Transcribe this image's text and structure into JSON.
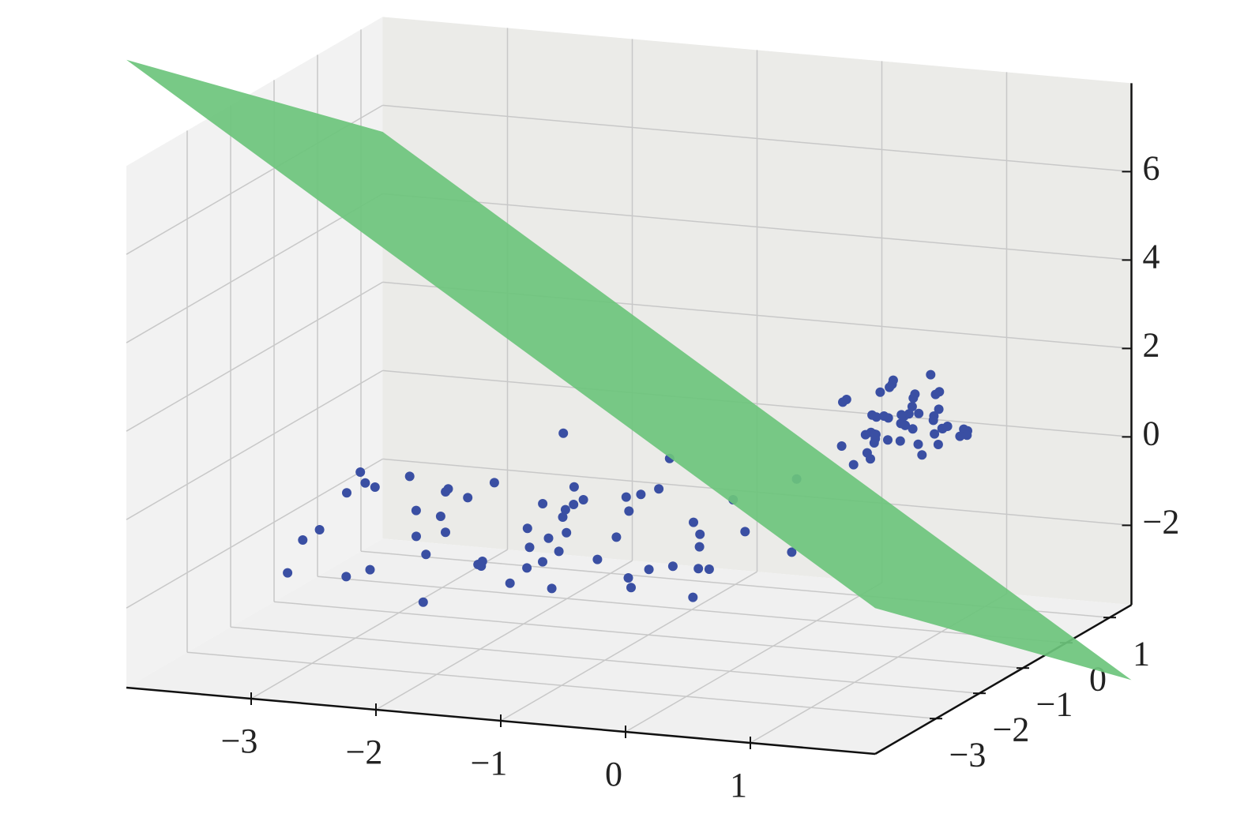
{
  "chart_data": {
    "type": "scatter3d",
    "xlim": [
      -4,
      2
    ],
    "ylim": [
      -4.4,
      1.5
    ],
    "zlim": [
      -3.8,
      8
    ],
    "xticks": [
      {
        "value": -3,
        "label": "−3"
      },
      {
        "value": -2,
        "label": "−2"
      },
      {
        "value": -1,
        "label": "−1"
      },
      0,
      1
    ],
    "yticks": [
      {
        "value": -3,
        "label": "−3"
      },
      {
        "value": -2,
        "label": "−2"
      },
      {
        "value": -1,
        "label": "−1"
      },
      0,
      1
    ],
    "zticks": [
      {
        "value": -2,
        "label": "−2"
      },
      0,
      2,
      4,
      6
    ],
    "grid": true,
    "color": "#3a4fa3",
    "x": [
      0.4,
      0.6,
      0.3,
      0.8,
      0.5,
      0.2,
      0.7,
      0.9,
      0.1,
      0.5,
      0.6,
      0.4,
      0.3,
      0.7,
      0.8,
      0.5,
      0.2,
      1.0,
      0.6,
      0.4,
      0.5,
      0.3,
      0.7,
      0.9,
      0.6,
      0.4,
      0.5,
      0.8,
      0.2,
      0.6,
      0.5,
      0.7,
      0.3,
      0.4,
      1.1,
      0.0,
      0.6,
      0.5,
      0.8,
      0.4,
      0.5,
      0.7,
      0.3,
      0.6,
      0.9,
      0.2,
      0.5,
      0.4,
      0.6,
      0.8,
      -3.2,
      -2.8,
      -2.1,
      -1.5,
      -0.9,
      -0.3,
      -2.5,
      -1.8,
      -1.1,
      -0.6,
      -3.0,
      -2.3,
      -1.6,
      -1.0,
      -0.4,
      -2.7,
      -2.0,
      -1.3,
      -0.7,
      -0.1,
      -3.4,
      -2.6,
      -1.9,
      -1.2,
      -0.5,
      -2.9,
      -2.2,
      -1.4,
      -0.8,
      -0.2,
      -3.1,
      -2.4,
      -1.7,
      -1.0,
      -0.3,
      -2.8,
      -2.0,
      -1.5,
      -0.9,
      -0.4,
      -3.3,
      -2.5,
      -1.8,
      -1.1,
      -0.6,
      -2.1,
      -1.6,
      -1.2,
      -0.7,
      -2.4,
      -1.3,
      -0.5,
      -2.9,
      -1.9,
      -0.8,
      -3.0,
      -2.2,
      -1.4,
      -0.2,
      -1.7
    ],
    "y": [
      0.5,
      0.2,
      0.9,
      0.4,
      -0.2,
      0.7,
      1.0,
      0.1,
      0.4,
      0.6,
      -0.4,
      1.2,
      0.3,
      0.8,
      -0.1,
      0.5,
      0.0,
      0.6,
      1.1,
      -0.3,
      0.9,
      0.6,
      0.2,
      0.8,
      0.4,
      0.1,
      1.3,
      0.5,
      0.8,
      -0.6,
      0.3,
      0.7,
      1.4,
      0.2,
      0.3,
      0.6,
      0.9,
      -0.1,
      1.0,
      0.4,
      0.6,
      0.0,
      0.5,
      0.7,
      0.3,
      1.1,
      0.2,
      0.8,
      0.5,
      0.6,
      -1.2,
      -0.5,
      0.2,
      -2.0,
      -0.8,
      0.4,
      -3.1,
      -1.5,
      -2.6,
      -0.2,
      -2.2,
      0.3,
      -1.0,
      -3.3,
      -1.7,
      -0.9,
      -2.8,
      0.1,
      -1.3,
      -2.4,
      -0.4,
      -1.9,
      -3.6,
      -0.6,
      -2.9,
      -2.5,
      -1.1,
      -0.3,
      -3.8,
      0.0,
      -1.6,
      -2.1,
      -0.7,
      -1.4,
      -3.0,
      -3.4,
      -0.1,
      -2.3,
      -1.8,
      -0.5,
      -2.7,
      -1.3,
      -0.2,
      -3.9,
      -1.0,
      -2.0,
      -3.2,
      -1.6,
      -2.6,
      -0.8,
      -2.2,
      -1.4,
      -3.5,
      -1.2,
      -0.4,
      -0.6,
      -2.9,
      -3.7,
      -1.9,
      -0.9
    ],
    "z": [
      0.6,
      0.3,
      1.2,
      0.8,
      0.1,
      0.5,
      0.2,
      0.9,
      1.0,
      0.4,
      0.6,
      0.3,
      -0.1,
      0.7,
      1.3,
      0.5,
      0.2,
      0.4,
      0.9,
      0.0,
      -0.2,
      1.1,
      0.6,
      0.3,
      0.8,
      0.5,
      0.7,
      0.1,
      0.4,
      0.9,
      1.5,
      0.2,
      0.6,
      0.3,
      0.5,
      0.8,
      1.4,
      0.6,
      0.0,
      0.7,
      0.4,
      1.0,
      0.2,
      -0.3,
      0.6,
      0.9,
      0.3,
      0.5,
      1.1,
      0.4,
      -0.8,
      -1.3,
      -0.2,
      -1.7,
      0.1,
      -0.9,
      -1.5,
      -2.2,
      -0.6,
      -1.1,
      -0.4,
      -1.9,
      -1.0,
      -0.3,
      -2.4,
      -1.6,
      -0.7,
      -1.2,
      -2.0,
      -0.5,
      -1.4,
      -0.1,
      -1.8,
      -0.9,
      -1.3,
      -2.1,
      -0.6,
      -1.5,
      -1.1,
      -2.3,
      -0.3,
      -1.7,
      -0.8,
      -2.5,
      -1.0,
      -0.5,
      -1.9,
      -1.2,
      -0.2,
      -1.6,
      -2.0,
      -0.7,
      -1.4,
      -1.0,
      -2.2,
      -0.4,
      -1.1,
      -1.8,
      -0.6,
      -2.6,
      -1.3,
      -0.9,
      -0.7,
      -1.5,
      -2.1,
      -2.3,
      -0.2,
      -0.8,
      -1.6,
      -1.2
    ],
    "surface": {
      "color": "#6cc47c",
      "x": [
        -4,
        2
      ],
      "y": [
        -4.4,
        1.5
      ],
      "z": [
        [
          10.4,
          -0.5
        ],
        [
          5.4,
          -5.5
        ]
      ]
    }
  }
}
